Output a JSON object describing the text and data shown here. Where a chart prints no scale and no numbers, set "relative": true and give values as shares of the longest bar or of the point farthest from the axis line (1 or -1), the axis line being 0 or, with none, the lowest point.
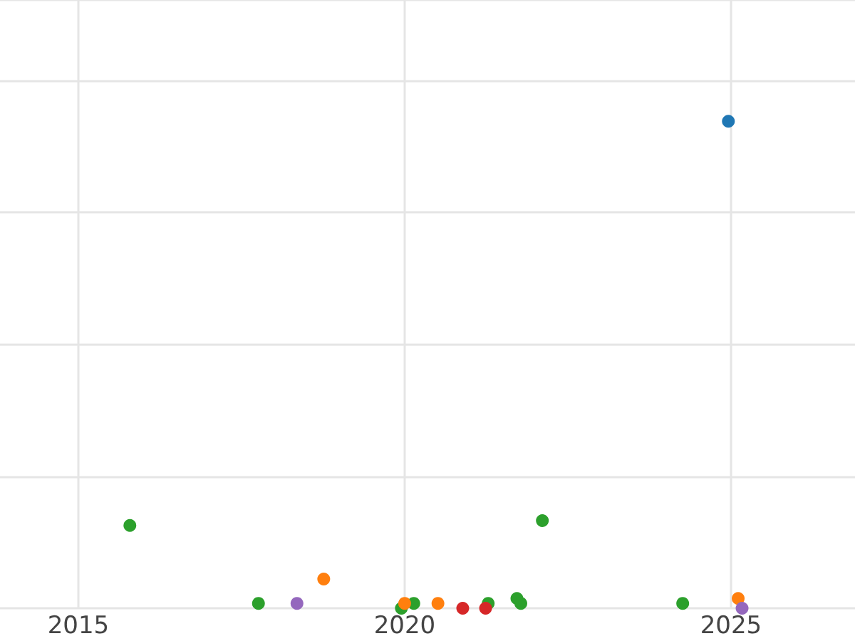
{
  "chart_data": {
    "type": "scatter",
    "relative": true,
    "xlim": [
      2013.8,
      2026.9
    ],
    "xticks": [
      2015,
      2020,
      2025
    ],
    "grid": true,
    "tick_labels": "x",
    "marker": "circle",
    "series": [
      {
        "color": "#1f77b4",
        "x": [
          2024.96
        ],
        "values": [
          1.0
        ]
      },
      {
        "color": "#2ca02c",
        "x": [
          2015.79,
          2017.76,
          2019.95,
          2020.14,
          2021.28,
          2021.72,
          2021.78,
          2022.11,
          2024.26
        ],
        "values": [
          0.17,
          0.01,
          0,
          0.01,
          0.01,
          0.02,
          0.01,
          0.18,
          0.01
        ]
      },
      {
        "color": "#ff7f0e",
        "x": [
          2018.76,
          2020.0,
          2020.51,
          2025.11
        ],
        "values": [
          0.06,
          0.01,
          0.01,
          0.02
        ]
      },
      {
        "color": "#d62728",
        "x": [
          2020.89,
          2021.24
        ],
        "values": [
          0,
          0
        ]
      },
      {
        "color": "#9467bd",
        "x": [
          2018.35,
          2025.17
        ],
        "values": [
          0.01,
          0
        ]
      }
    ]
  }
}
